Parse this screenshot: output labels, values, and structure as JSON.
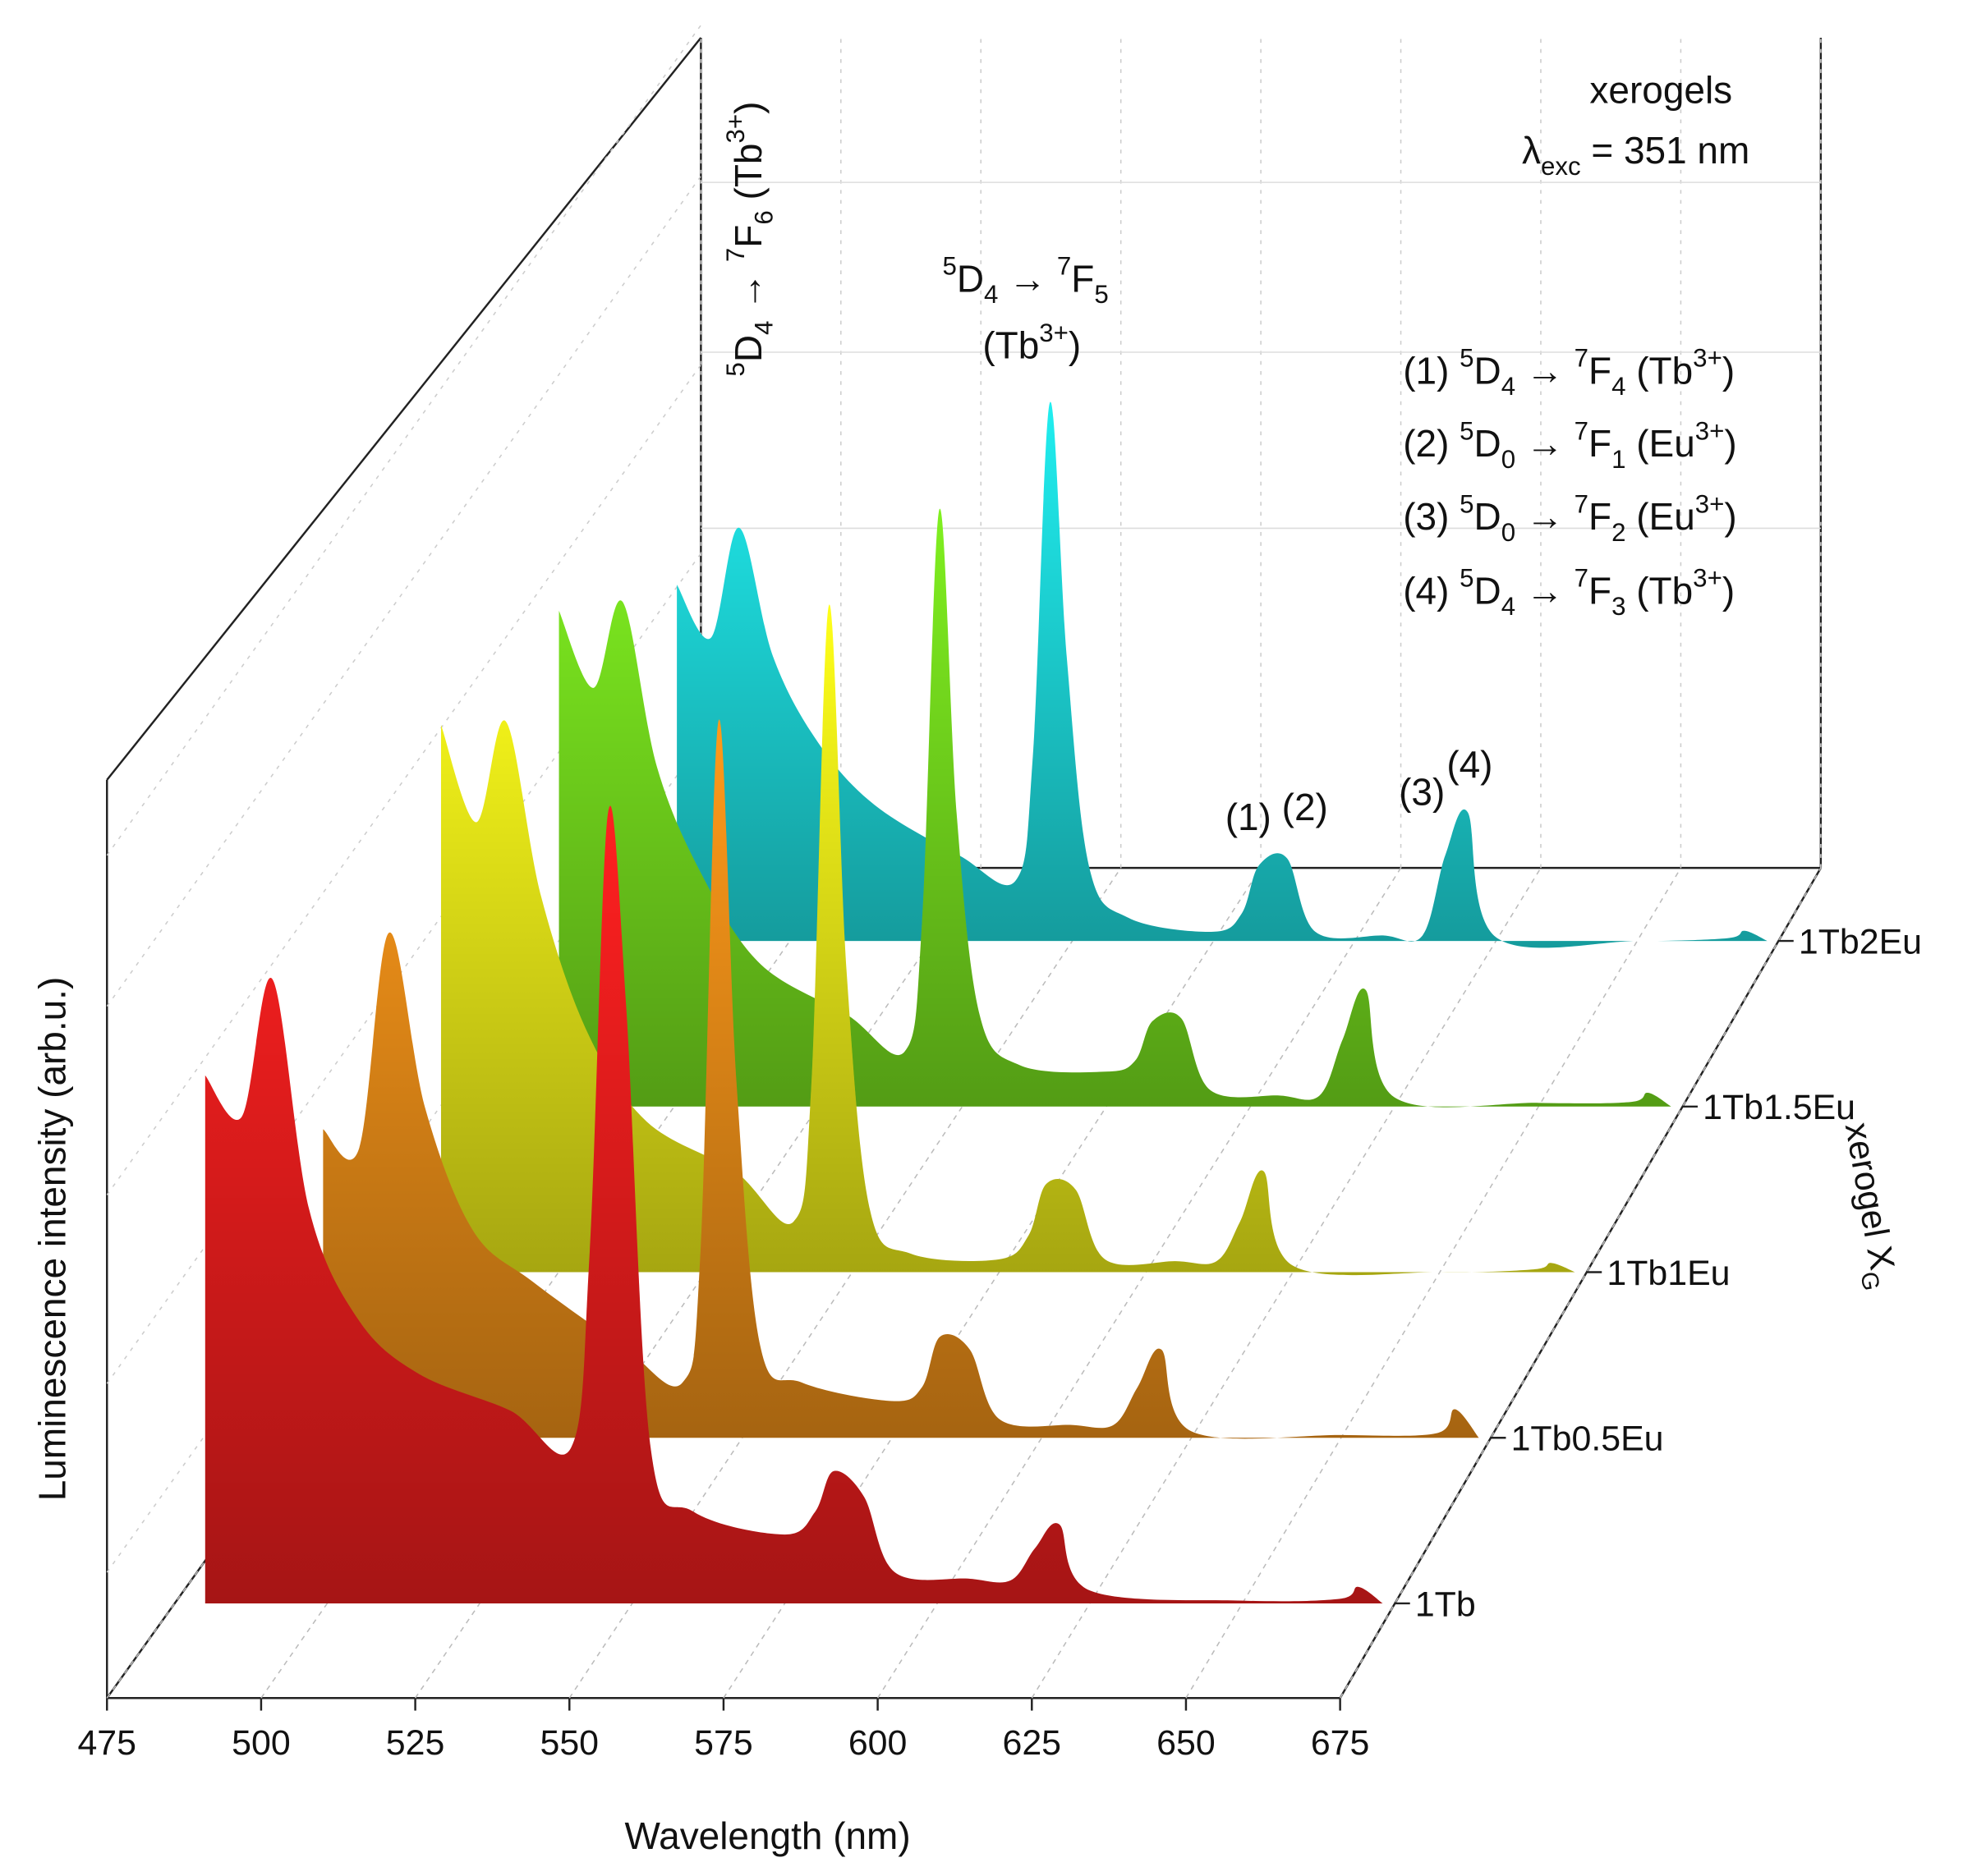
{
  "chart_data": {
    "type": "waterfall",
    "xlabel": "Wavelength (nm)",
    "ylabel": "Luminescence intensity (arb.u.)",
    "zlabel": [
      {
        "t": "xerogel X"
      },
      {
        "t": "G",
        "s": "sub"
      }
    ],
    "x": [
      480,
      486,
      491,
      497,
      505,
      515,
      530,
      540,
      543,
      546,
      549,
      553,
      560,
      575,
      580,
      583,
      588,
      593,
      605,
      612,
      616,
      620,
      625,
      650,
      666,
      669,
      673
    ],
    "xlim": [
      475,
      675
    ],
    "xticks": [
      475,
      500,
      525,
      550,
      575,
      600,
      625,
      650,
      675
    ],
    "ylim": [
      0,
      100
    ],
    "series": [
      {
        "name": "1Tb",
        "color": "#ff2020",
        "values": [
          57.5,
          53,
          68,
          43,
          31,
          25,
          21,
          17,
          38,
          86,
          65,
          17,
          10,
          7.5,
          10,
          14.4,
          11.6,
          3.4,
          2.7,
          2.5,
          6,
          8.6,
          1.4,
          0.3,
          0.5,
          1.8,
          0
        ]
      },
      {
        "name": "1Tb0.5Eu",
        "color": "#ff9a1a",
        "values": [
          33.6,
          31.5,
          55,
          36,
          22.6,
          17,
          10,
          6,
          20,
          78,
          39,
          10,
          6,
          4,
          5.5,
          11,
          9.6,
          2,
          1.4,
          1.4,
          5.5,
          9.6,
          0.7,
          0.3,
          0.5,
          3.1,
          0
        ]
      },
      {
        "name": "1Tb1Eu",
        "color": "#ffff1a",
        "values": [
          59.6,
          49,
          60,
          41,
          26,
          16.4,
          11,
          5.5,
          20,
          72.6,
          33,
          6.8,
          2,
          1.4,
          4,
          9.6,
          9,
          1.4,
          1.2,
          1.2,
          5.5,
          11,
          0.7,
          0,
          0.3,
          1,
          0
        ]
      },
      {
        "name": "1Tb1.5Eu",
        "color": "#80f020",
        "values": [
          54,
          45.6,
          55,
          37,
          25,
          15.5,
          10,
          6,
          20,
          65,
          32,
          10,
          4.5,
          3.8,
          5,
          9.3,
          9.6,
          1.8,
          1.2,
          1.2,
          7.3,
          12.7,
          1,
          0.4,
          0.5,
          1.5,
          0
        ]
      },
      {
        "name": "1Tb2Eu",
        "color": "#20eef0",
        "values": [
          38.8,
          33,
          45,
          31,
          21.6,
          14.8,
          9.3,
          6.6,
          20,
          58.6,
          31,
          8,
          2.5,
          1,
          3,
          8.2,
          9,
          1,
          0.6,
          0.6,
          9.3,
          14,
          0.4,
          0,
          0.3,
          1.1,
          0
        ]
      }
    ],
    "annotations": [
      {
        "segments": [
          {
            "t": "5",
            "s": "sup"
          },
          {
            "t": "D"
          },
          {
            "t": "4",
            "s": "sub"
          },
          {
            "t": " → "
          },
          {
            "t": "7",
            "s": "sup"
          },
          {
            "t": "F"
          },
          {
            "t": "6",
            "s": "sub"
          },
          {
            "t": " (Tb"
          },
          {
            "t": "3+",
            "s": "sup"
          },
          {
            "t": ")"
          }
        ]
      },
      {
        "segments": [
          {
            "t": "5",
            "s": "sup"
          },
          {
            "t": "D"
          },
          {
            "t": "4",
            "s": "sub"
          },
          {
            "t": " → "
          },
          {
            "t": "7",
            "s": "sup"
          },
          {
            "t": "F"
          },
          {
            "t": "5",
            "s": "sub"
          }
        ]
      },
      {
        "segments": [
          {
            "t": "(Tb"
          },
          {
            "t": "3+",
            "s": "sup"
          },
          {
            "t": ")"
          }
        ]
      },
      {
        "segments": [
          {
            "t": "xerogels"
          }
        ]
      },
      {
        "segments": [
          {
            "t": "λ"
          },
          {
            "t": "exc",
            "s": "sub"
          },
          {
            "t": " = 351 nm"
          }
        ]
      },
      {
        "segments": [
          {
            "t": "(1) "
          },
          {
            "t": "5",
            "s": "sup"
          },
          {
            "t": "D"
          },
          {
            "t": "4",
            "s": "sub"
          },
          {
            "t": " → "
          },
          {
            "t": "7",
            "s": "sup"
          },
          {
            "t": "F"
          },
          {
            "t": "4",
            "s": "sub"
          },
          {
            "t": " (Tb"
          },
          {
            "t": "3+",
            "s": "sup"
          },
          {
            "t": ")"
          }
        ]
      },
      {
        "segments": [
          {
            "t": "(2) "
          },
          {
            "t": "5",
            "s": "sup"
          },
          {
            "t": "D"
          },
          {
            "t": "0",
            "s": "sub"
          },
          {
            "t": " → "
          },
          {
            "t": "7",
            "s": "sup"
          },
          {
            "t": "F"
          },
          {
            "t": "1",
            "s": "sub"
          },
          {
            "t": " (Eu"
          },
          {
            "t": "3+",
            "s": "sup"
          },
          {
            "t": ")"
          }
        ]
      },
      {
        "segments": [
          {
            "t": "(3) "
          },
          {
            "t": "5",
            "s": "sup"
          },
          {
            "t": "D"
          },
          {
            "t": "0",
            "s": "sub"
          },
          {
            "t": " → "
          },
          {
            "t": "7",
            "s": "sup"
          },
          {
            "t": "F"
          },
          {
            "t": "2",
            "s": "sub"
          },
          {
            "t": " (Eu"
          },
          {
            "t": "3+",
            "s": "sup"
          },
          {
            "t": ")"
          }
        ]
      },
      {
        "segments": [
          {
            "t": "(4) "
          },
          {
            "t": "5",
            "s": "sup"
          },
          {
            "t": "D"
          },
          {
            "t": "4",
            "s": "sub"
          },
          {
            "t": " → "
          },
          {
            "t": "7",
            "s": "sup"
          },
          {
            "t": "F"
          },
          {
            "t": "3",
            "s": "sub"
          },
          {
            "t": " (Tb"
          },
          {
            "t": "3+",
            "s": "sup"
          },
          {
            "t": ")"
          }
        ]
      },
      {
        "segments": [
          {
            "t": "(1)"
          }
        ]
      },
      {
        "segments": [
          {
            "t": "(2)"
          }
        ]
      },
      {
        "segments": [
          {
            "t": "(3)"
          }
        ]
      },
      {
        "segments": [
          {
            "t": "(4)"
          }
        ]
      }
    ]
  }
}
